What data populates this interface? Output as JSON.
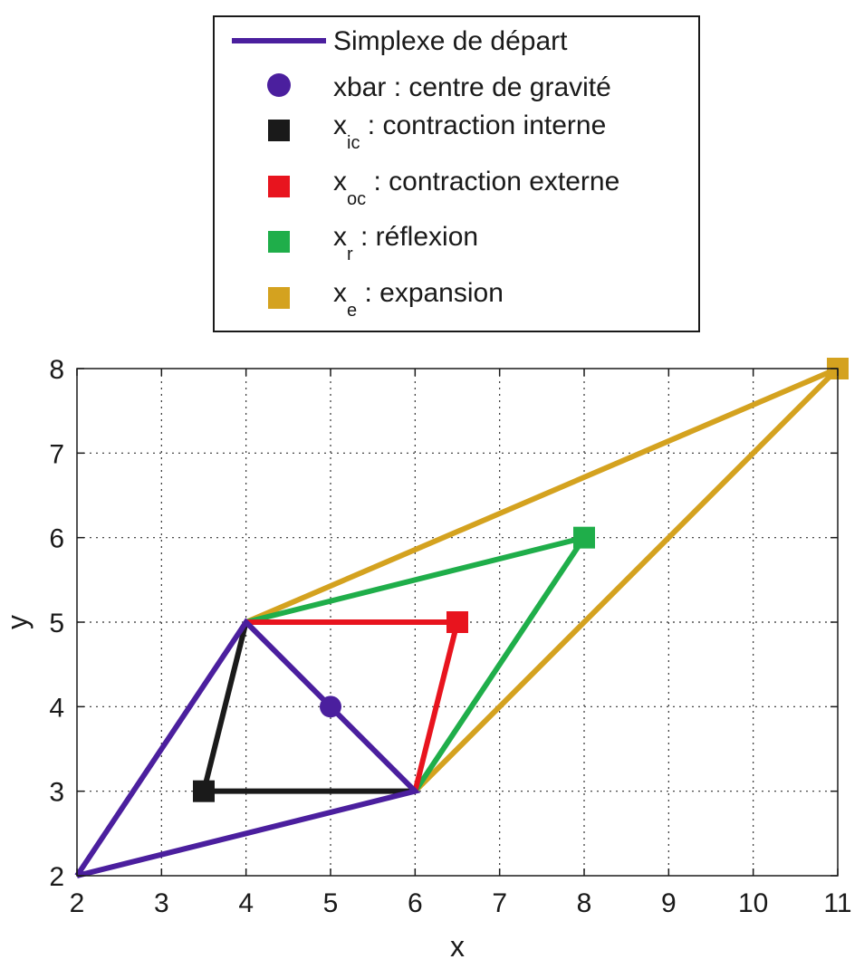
{
  "chart_data": {
    "type": "line",
    "xlabel": "x",
    "ylabel": "y",
    "xlim": [
      2,
      11
    ],
    "ylim": [
      2,
      8
    ],
    "xticks": [
      2,
      3,
      4,
      5,
      6,
      7,
      8,
      9,
      10,
      11
    ],
    "yticks": [
      2,
      3,
      4,
      5,
      6,
      7,
      8
    ],
    "grid": "dotted",
    "legend_position": "top-outside",
    "series": [
      {
        "name": "Simplexe de départ",
        "kind": "polyline",
        "color": "#4b1f9e",
        "points": [
          [
            2,
            2
          ],
          [
            4,
            5
          ],
          [
            6,
            3
          ],
          [
            2,
            2
          ]
        ]
      },
      {
        "name": "xbar : centre de gravité",
        "kind": "point",
        "marker": "circle",
        "color": "#4b1f9e",
        "points": [
          [
            5,
            4
          ]
        ]
      },
      {
        "name": "x_ic : contraction interne",
        "kind": "polyline-marker",
        "marker": "square",
        "color": "#1a1a1a",
        "points": [
          [
            4,
            5
          ],
          [
            3.5,
            3
          ],
          [
            6,
            3
          ]
        ],
        "marker_point": [
          3.5,
          3
        ]
      },
      {
        "name": "x_oc : contraction externe",
        "kind": "polyline-marker",
        "marker": "square",
        "color": "#e8141e",
        "points": [
          [
            4,
            5
          ],
          [
            6.5,
            5
          ],
          [
            6,
            3
          ]
        ],
        "marker_point": [
          6.5,
          5
        ]
      },
      {
        "name": "x_r : réflexion",
        "kind": "polyline-marker",
        "marker": "square",
        "color": "#1fae4a",
        "points": [
          [
            4,
            5
          ],
          [
            8,
            6
          ],
          [
            6,
            3
          ]
        ],
        "marker_point": [
          8,
          6
        ]
      },
      {
        "name": "x_e : expansion",
        "kind": "polyline-marker",
        "marker": "square",
        "color": "#d4a21f",
        "points": [
          [
            4,
            5
          ],
          [
            11,
            8
          ],
          [
            6,
            3
          ]
        ],
        "marker_point": [
          11,
          8
        ]
      }
    ],
    "legend": [
      {
        "main": "Simplexe de départ",
        "sub": "",
        "rest": ""
      },
      {
        "main": "xbar : centre de gravité",
        "sub": "",
        "rest": ""
      },
      {
        "main": "x",
        "sub": "ic",
        "rest": " : contraction interne"
      },
      {
        "main": "x",
        "sub": "oc",
        "rest": " : contraction externe"
      },
      {
        "main": "x",
        "sub": "r",
        "rest": " : réflexion"
      },
      {
        "main": "x",
        "sub": "e",
        "rest": " : expansion"
      }
    ]
  }
}
